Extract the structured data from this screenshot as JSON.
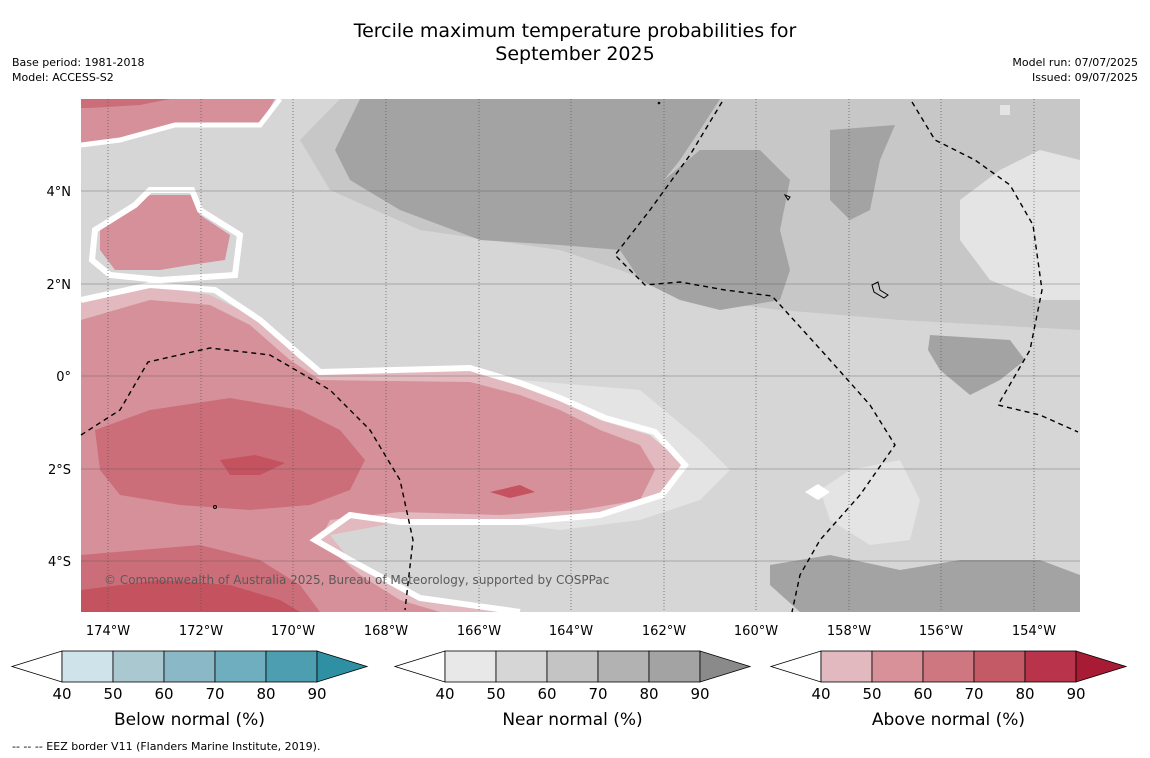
{
  "title_line1": "Tercile maximum temperature probabilities for",
  "title_line2": "September 2025",
  "meta_left": [
    "Base period: 1981-2018",
    "Model: ACCESS-S2"
  ],
  "meta_right": [
    "Model run: 07/07/2025",
    "Issued: 09/07/2025"
  ],
  "copyright": "© Commonwealth of Australia 2025, Bureau of Meteorology, supported by COSPPac",
  "footer": "--  --  -- EEZ border V11 (Flanders Marine Institute, 2019).",
  "lon_labels": [
    "174°W",
    "172°W",
    "170°W",
    "168°W",
    "166°W",
    "164°W",
    "162°W",
    "160°W",
    "158°W",
    "156°W",
    "154°W"
  ],
  "lat_labels": [
    "4°N",
    "2°N",
    "0°",
    "2°S",
    "4°S"
  ],
  "colorbars": [
    {
      "title": "Below normal (%)",
      "ticks": [
        "40",
        "50",
        "60",
        "70",
        "80",
        "90"
      ],
      "colors": [
        "#cfe3ea",
        "#a9c8d0",
        "#8bb8c6",
        "#6eaebe",
        "#4d9eb1",
        "#2f8fa3"
      ]
    },
    {
      "title": "Near normal (%)",
      "ticks": [
        "40",
        "50",
        "60",
        "70",
        "80",
        "90"
      ],
      "colors": [
        "#e8e8e8",
        "#d6d6d6",
        "#c4c4c4",
        "#b2b2b2",
        "#a3a3a3",
        "#8a8a8a"
      ]
    },
    {
      "title": "Above normal (%)",
      "ticks": [
        "40",
        "50",
        "60",
        "70",
        "80",
        "90"
      ],
      "colors": [
        "#e2b9be",
        "#d99199",
        "#cf7780",
        "#c55a67",
        "#b9344a",
        "#a81b35"
      ]
    }
  ],
  "colors": {
    "near_40": "#e4e4e4",
    "near_50": "#d6d6d6",
    "near_60": "#c7c7c7",
    "near_70": "#b5b5b5",
    "near_80": "#a3a3a3",
    "above_40": "#e2b9be",
    "above_50": "#d6909a",
    "above_60": "#cc6e79",
    "above_70": "#c4525f",
    "above_80": "#b7374b"
  }
}
